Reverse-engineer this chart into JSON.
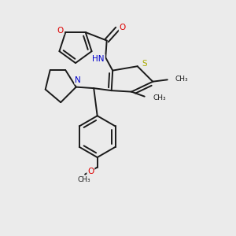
{
  "background_color": "#ebebeb",
  "bond_color": "#1a1a1a",
  "atom_colors": {
    "O": "#dd0000",
    "N": "#0000cc",
    "S": "#aaaa00",
    "C": "#1a1a1a"
  },
  "figsize": [
    3.0,
    3.0
  ],
  "dpi": 100,
  "lw": 1.4,
  "xlim": [
    0,
    10
  ],
  "ylim": [
    0,
    10
  ]
}
